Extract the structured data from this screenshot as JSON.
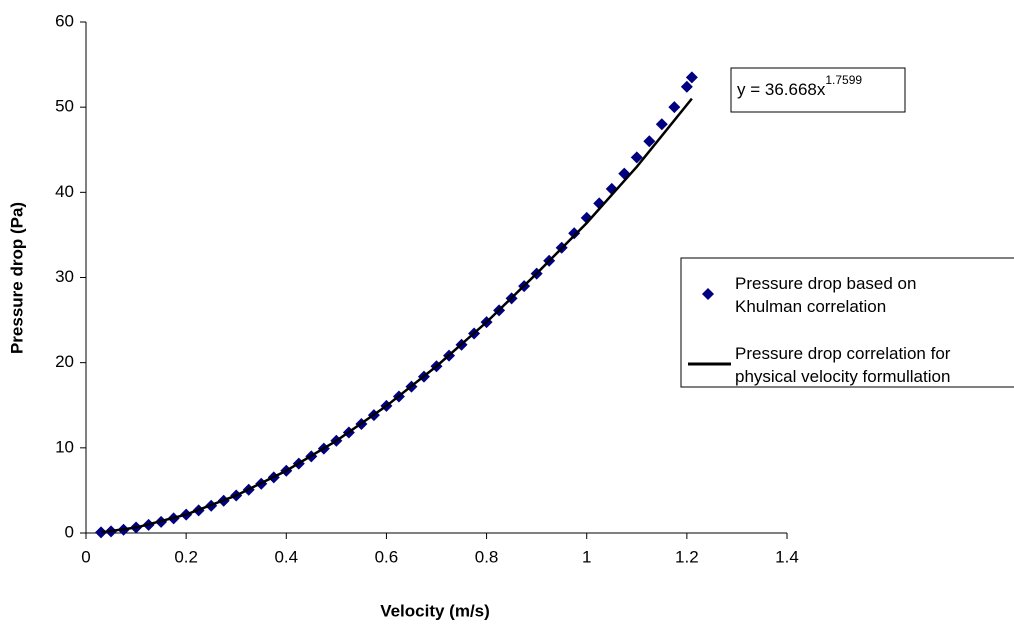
{
  "chart_data": {
    "type": "scatter",
    "x_label": "Velocity (m/s)",
    "y_label": "Pressure drop (Pa)",
    "annotation": {
      "text": "y = 36.668x",
      "superscript": "1.7599"
    },
    "xlim": [
      0,
      1.4
    ],
    "xticks": [
      0,
      0.2,
      0.4,
      0.6,
      0.8,
      1,
      1.2,
      1.4
    ],
    "ylim": [
      0,
      60
    ],
    "yticks": [
      0,
      10,
      20,
      30,
      40,
      50,
      60
    ],
    "series": [
      {
        "name": "Pressure drop based on Khulman correlation",
        "color": "#000080",
        "marker": "diamond",
        "x": [
          0.03,
          0.05,
          0.075,
          0.1,
          0.125,
          0.15,
          0.175,
          0.2,
          0.225,
          0.25,
          0.275,
          0.3,
          0.325,
          0.35,
          0.375,
          0.4,
          0.425,
          0.45,
          0.475,
          0.5,
          0.525,
          0.55,
          0.575,
          0.6,
          0.625,
          0.65,
          0.675,
          0.7,
          0.725,
          0.75,
          0.775,
          0.8,
          0.825,
          0.85,
          0.875,
          0.9,
          0.925,
          0.95,
          0.975,
          1.0,
          1.025,
          1.05,
          1.075,
          1.1,
          1.125,
          1.15,
          1.175,
          1.2,
          1.21
        ],
        "values": [
          0.08,
          0.19,
          0.38,
          0.64,
          0.95,
          1.3,
          1.71,
          2.16,
          2.66,
          3.2,
          3.79,
          4.41,
          5.08,
          5.78,
          6.53,
          7.31,
          8.14,
          9.0,
          9.9,
          10.83,
          11.8,
          12.8,
          13.84,
          14.92,
          16.03,
          17.18,
          18.36,
          19.58,
          20.83,
          22.1,
          23.42,
          24.76,
          26.14,
          27.55,
          28.99,
          30.46,
          31.97,
          33.5,
          35.2,
          37.0,
          38.7,
          40.4,
          42.2,
          44.1,
          46.0,
          48.0,
          50.0,
          52.4,
          53.5
        ]
      },
      {
        "name": "Pressure drop correlation for physical velocity formullation",
        "color": "#000000",
        "marker": "line",
        "x": [
          0.03,
          0.1,
          0.2,
          0.3,
          0.4,
          0.5,
          0.6,
          0.7,
          0.8,
          0.9,
          1.0,
          1.1,
          1.21
        ],
        "values": [
          0.08,
          0.64,
          2.16,
          4.41,
          7.31,
          10.83,
          14.92,
          19.58,
          24.76,
          30.46,
          36.4,
          43.0,
          51.0
        ]
      }
    ]
  }
}
